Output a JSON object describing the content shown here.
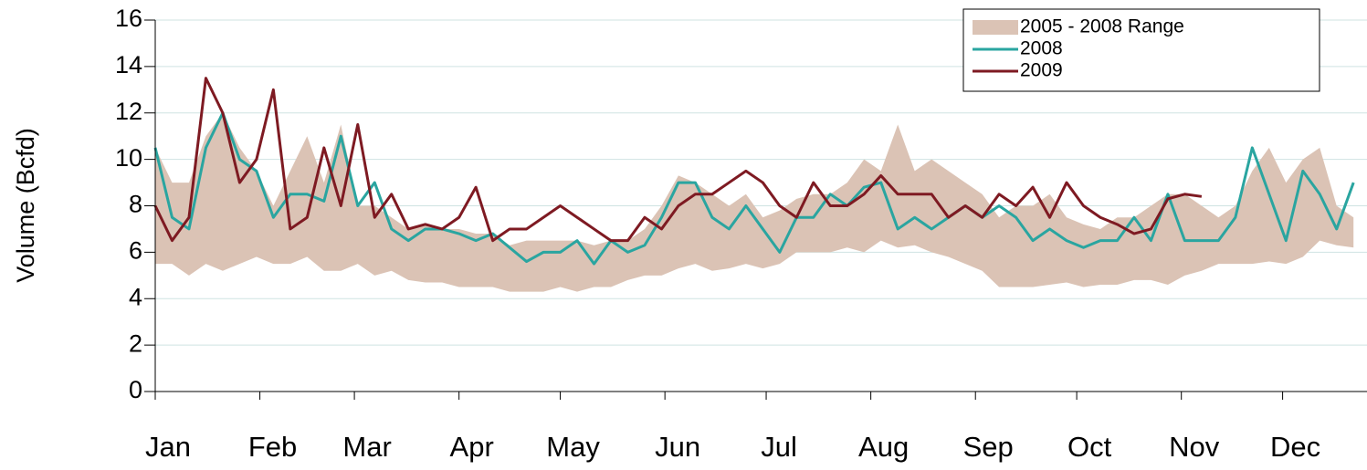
{
  "chart_data": {
    "type": "line",
    "y_label": "Volume (Bcfd)",
    "x": [
      1,
      6,
      11,
      16,
      21,
      26,
      31,
      36,
      41,
      46,
      51,
      56,
      61,
      66,
      71,
      76,
      81,
      86,
      91,
      96,
      101,
      106,
      111,
      116,
      121,
      126,
      131,
      136,
      141,
      146,
      151,
      156,
      161,
      166,
      171,
      176,
      181,
      186,
      191,
      196,
      201,
      206,
      211,
      216,
      221,
      226,
      231,
      236,
      241,
      246,
      251,
      256,
      261,
      266,
      271,
      276,
      281,
      286,
      291,
      296,
      301,
      306,
      311,
      316,
      321,
      326,
      331,
      336,
      341,
      346,
      351,
      356
    ],
    "xlim": [
      1,
      360
    ],
    "xticks": [
      {
        "value": 1,
        "label": "Jan"
      },
      {
        "value": 32,
        "label": "Feb"
      },
      {
        "value": 60,
        "label": "Mar"
      },
      {
        "value": 91,
        "label": "Apr"
      },
      {
        "value": 121,
        "label": "May"
      },
      {
        "value": 152,
        "label": "Jun"
      },
      {
        "value": 182,
        "label": "Jul"
      },
      {
        "value": 213,
        "label": "Aug"
      },
      {
        "value": 244,
        "label": "Sep"
      },
      {
        "value": 274,
        "label": "Oct"
      },
      {
        "value": 305,
        "label": "Nov"
      },
      {
        "value": 335,
        "label": "Dec"
      }
    ],
    "ylim": [
      0,
      16
    ],
    "yticks": [
      0,
      2,
      4,
      6,
      8,
      10,
      12,
      14,
      16
    ],
    "grid": true,
    "legend": "top-right",
    "series": [
      {
        "name": "2005 - 2008 Range",
        "type": "range",
        "color": "#dbc3b5",
        "low": [
          5.5,
          5.5,
          5,
          5.5,
          5.2,
          5.5,
          5.8,
          5.5,
          5.5,
          5.8,
          5.2,
          5.2,
          5.5,
          5,
          5.2,
          4.8,
          4.7,
          4.7,
          4.5,
          4.5,
          4.5,
          4.3,
          4.3,
          4.3,
          4.5,
          4.3,
          4.5,
          4.5,
          4.8,
          5,
          5,
          5.3,
          5.5,
          5.2,
          5.3,
          5.5,
          5.3,
          5.5,
          6,
          6,
          6,
          6.2,
          6,
          6.5,
          6.2,
          6.3,
          6,
          5.8,
          5.5,
          5.2,
          4.5,
          4.5,
          4.5,
          4.6,
          4.7,
          4.5,
          4.6,
          4.6,
          4.8,
          4.8,
          4.6,
          5,
          5.2,
          5.5,
          5.5,
          5.5,
          5.6,
          5.5,
          5.8,
          6.5,
          6.3,
          6.2
        ],
        "high": [
          10.5,
          9,
          9,
          11,
          12,
          10.5,
          9.5,
          8,
          9.5,
          11,
          9,
          11.5,
          8,
          8,
          7.5,
          7,
          7.2,
          7,
          7,
          6.8,
          6.8,
          6.3,
          6.5,
          6.5,
          6.5,
          6.5,
          6.3,
          6.5,
          6.5,
          7,
          8,
          9.3,
          9,
          8.5,
          8,
          8.5,
          7.5,
          7.8,
          8.3,
          8.5,
          8.5,
          9,
          10,
          9.5,
          11.5,
          9.5,
          10,
          9.5,
          9,
          8.5,
          7.5,
          8,
          8,
          8.5,
          7.5,
          7.2,
          7,
          7.5,
          7.5,
          8,
          8.5,
          8.5,
          8,
          7.5,
          8,
          9.5,
          10.5,
          9,
          10,
          10.5,
          8,
          7.5
        ]
      },
      {
        "name": "2008",
        "color": "#2aa5a0",
        "values": [
          10.5,
          7.5,
          7,
          10.5,
          12,
          10,
          9.5,
          7.5,
          8.5,
          8.5,
          8.2,
          11,
          8,
          9,
          7,
          6.5,
          7,
          7,
          6.8,
          6.5,
          6.8,
          6.2,
          5.6,
          6,
          6,
          6.5,
          5.5,
          6.5,
          6,
          6.3,
          7.5,
          9,
          9,
          7.5,
          7,
          8,
          7,
          6,
          7.5,
          7.5,
          8.5,
          8,
          8.8,
          9,
          7,
          7.5,
          7,
          7.5,
          8,
          7.5,
          8,
          7.5,
          6.5,
          7,
          6.5,
          6.2,
          6.5,
          6.5,
          7.5,
          6.5,
          8.5,
          6.5,
          6.5,
          6.5,
          7.5,
          10.5,
          8.5,
          6.5,
          9.5,
          8.5,
          7,
          9
        ]
      },
      {
        "name": "2009",
        "color": "#7e1a22",
        "values": [
          8,
          6.5,
          7.5,
          13.5,
          12,
          9,
          10,
          13,
          7,
          7.5,
          10.5,
          8,
          11.5,
          7.5,
          8.5,
          7,
          7.2,
          7,
          7.5,
          8.8,
          6.5,
          7,
          7,
          7.5,
          8,
          7.5,
          7,
          6.5,
          6.5,
          7.5,
          7,
          8,
          8.5,
          8.5,
          9,
          9.5,
          9,
          8,
          7.5,
          9,
          8,
          8,
          8.5,
          9.3,
          8.5,
          8.5,
          8.5,
          7.5,
          8,
          7.5,
          8.5,
          8,
          8.8,
          7.5,
          9,
          8,
          7.5,
          7.2,
          6.8,
          7,
          8.3,
          8.5,
          8.4,
          null,
          null,
          null,
          null,
          null,
          null,
          null,
          null,
          null
        ]
      }
    ]
  }
}
